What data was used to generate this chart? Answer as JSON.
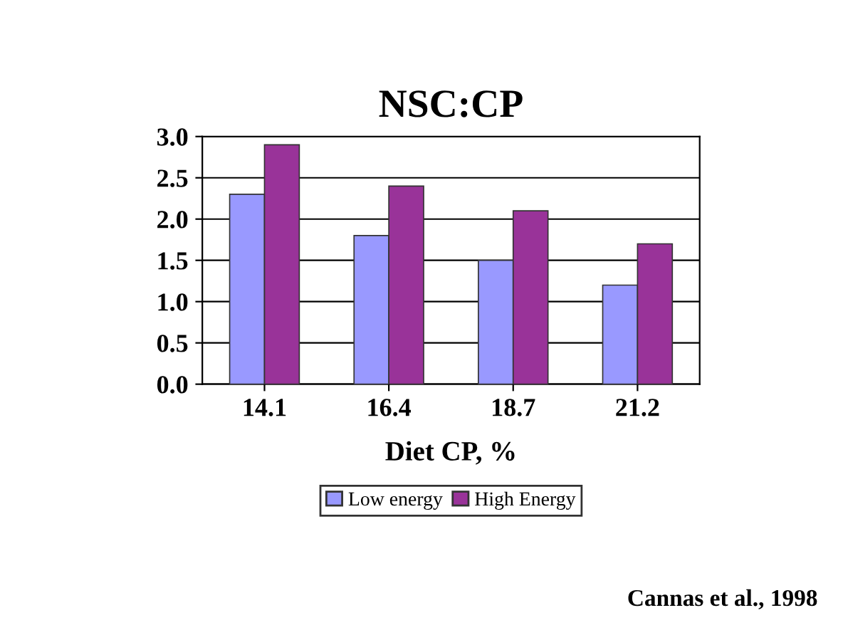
{
  "chart_data": {
    "type": "bar",
    "title": "NSC:CP",
    "xlabel": "Diet CP, %",
    "categories": [
      "14.1",
      "16.4",
      "18.7",
      "21.2"
    ],
    "series": [
      {
        "name": "Low energy",
        "color": "#9999ff",
        "values": [
          2.3,
          1.8,
          1.5,
          1.2
        ]
      },
      {
        "name": "High Energy",
        "color": "#993399",
        "values": [
          2.9,
          2.4,
          2.1,
          1.7
        ]
      }
    ],
    "ylim": [
      0,
      3
    ],
    "yticks": [
      {
        "value": 0,
        "label": "0.0"
      },
      {
        "value": 0.5,
        "label": "0.5"
      },
      {
        "value": 1,
        "label": "1.0"
      },
      {
        "value": 1.5,
        "label": "1.5"
      },
      {
        "value": 2,
        "label": "2.0"
      },
      {
        "value": 2.5,
        "label": "2.5"
      },
      {
        "value": 3,
        "label": "3.0"
      }
    ],
    "grid": "y",
    "legend": "bottom",
    "annotations": [
      "Cannas et al., 1998"
    ]
  }
}
